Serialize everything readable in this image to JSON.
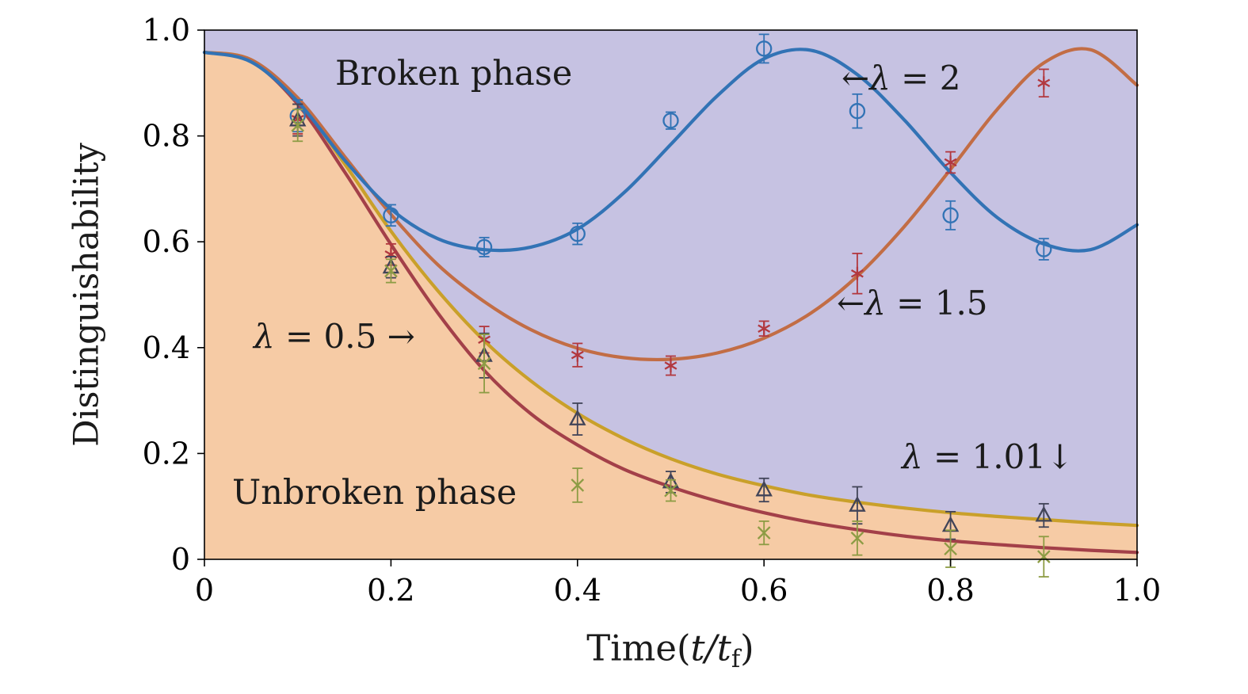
{
  "chart_data": {
    "type": "line",
    "title": "",
    "xlabel": {
      "prefix": "Time(",
      "var": "t/t",
      "sub": "f",
      "suffix": ")"
    },
    "ylabel": "Distinguishability",
    "xlim": [
      0,
      1.0
    ],
    "ylim": [
      0,
      1.0
    ],
    "grid": false,
    "x_ticks": [
      0,
      0.2,
      0.4,
      0.6,
      0.8,
      1.0
    ],
    "x_tick_labels": [
      "0",
      "0.2",
      "0.4",
      "0.6",
      "0.8",
      "1.0"
    ],
    "y_ticks": [
      0,
      0.2,
      0.4,
      0.6,
      0.8,
      1.0
    ],
    "y_tick_labels": [
      "0",
      "0.2",
      "0.4",
      "0.6",
      "0.8",
      "1.0"
    ],
    "regions": [
      {
        "label": "Broken phase",
        "color": "#c6c2e2"
      },
      {
        "label": "Unbroken phase",
        "color": "#f6cba5"
      }
    ],
    "curve_x": [
      0,
      0.05,
      0.1,
      0.15,
      0.2,
      0.25,
      0.3,
      0.35,
      0.4,
      0.45,
      0.5,
      0.55,
      0.6,
      0.65,
      0.7,
      0.75,
      0.8,
      0.85,
      0.9,
      0.95,
      1.0
    ],
    "series": [
      {
        "id": "lambda-2",
        "name": "λ = 2",
        "z": 4,
        "color": "#3273b5",
        "marker": "circle",
        "marker_color": "#3273b5",
        "curve_y": [
          0.958,
          0.94,
          0.865,
          0.755,
          0.662,
          0.606,
          0.585,
          0.59,
          0.624,
          0.693,
          0.784,
          0.876,
          0.946,
          0.962,
          0.916,
          0.831,
          0.731,
          0.646,
          0.596,
          0.585,
          0.632
        ],
        "points": {
          "x": [
            0.1,
            0.2,
            0.3,
            0.4,
            0.5,
            0.6,
            0.7,
            0.8,
            0.9
          ],
          "y": [
            0.838,
            0.65,
            0.59,
            0.615,
            0.829,
            0.965,
            0.847,
            0.65,
            0.586
          ],
          "err": [
            0.03,
            0.02,
            0.018,
            0.02,
            0.016,
            0.027,
            0.032,
            0.027,
            0.02
          ]
        }
      },
      {
        "id": "lambda-1-5",
        "name": "λ = 1.5",
        "z": 3,
        "color": "#c26d45",
        "marker": "asterisk",
        "marker_color": "#b2383f",
        "curve_y": [
          0.958,
          0.944,
          0.872,
          0.762,
          0.652,
          0.557,
          0.487,
          0.434,
          0.399,
          0.381,
          0.378,
          0.39,
          0.418,
          0.465,
          0.535,
          0.628,
          0.737,
          0.85,
          0.938,
          0.963,
          0.896
        ],
        "points": {
          "x": [
            0.1,
            0.2,
            0.3,
            0.4,
            0.5,
            0.6,
            0.7,
            0.8,
            0.9
          ],
          "y": [
            0.832,
            0.576,
            0.415,
            0.386,
            0.366,
            0.436,
            0.54,
            0.75,
            0.9
          ],
          "err": [
            0.028,
            0.02,
            0.025,
            0.022,
            0.018,
            0.014,
            0.038,
            0.02,
            0.026
          ]
        }
      },
      {
        "id": "lambda-1-01",
        "name": "λ = 1.01",
        "z": 2,
        "boundary": true,
        "color": "#c9a02a",
        "marker": "triangle",
        "marker_color": "#414458",
        "curve_y": [
          0.958,
          0.944,
          0.868,
          0.748,
          0.62,
          0.508,
          0.413,
          0.337,
          0.276,
          0.228,
          0.19,
          0.161,
          0.139,
          0.121,
          0.108,
          0.097,
          0.088,
          0.081,
          0.075,
          0.069,
          0.064
        ],
        "points": {
          "x": [
            0.1,
            0.2,
            0.3,
            0.4,
            0.5,
            0.6,
            0.7,
            0.8,
            0.9
          ],
          "y": [
            0.83,
            0.552,
            0.385,
            0.265,
            0.146,
            0.131,
            0.102,
            0.064,
            0.083
          ],
          "err": [
            0.03,
            0.02,
            0.042,
            0.03,
            0.02,
            0.022,
            0.035,
            0.026,
            0.022
          ]
        }
      },
      {
        "id": "lambda-0-5",
        "name": "λ = 0.5",
        "z": 1,
        "color": "#a34049",
        "marker": "x",
        "marker_color": "#8d9c44",
        "curve_y": [
          0.958,
          0.941,
          0.86,
          0.733,
          0.595,
          0.466,
          0.357,
          0.275,
          0.216,
          0.17,
          0.137,
          0.11,
          0.088,
          0.07,
          0.056,
          0.044,
          0.035,
          0.028,
          0.022,
          0.017,
          0.013
        ],
        "points": {
          "x": [
            0.1,
            0.2,
            0.3,
            0.4,
            0.5,
            0.6,
            0.7,
            0.8,
            0.9
          ],
          "y": [
            0.82,
            0.545,
            0.37,
            0.14,
            0.13,
            0.05,
            0.04,
            0.02,
            0.005
          ],
          "err": [
            0.03,
            0.022,
            0.055,
            0.032,
            0.02,
            0.022,
            0.032,
            0.035,
            0.038
          ]
        }
      }
    ],
    "annotations": [
      {
        "pre": "←",
        "lam": "λ",
        "rest": " = 2",
        "target": "lambda-2"
      },
      {
        "pre": "←",
        "lam": "λ",
        "rest": " = 1.5",
        "target": "lambda-1-5"
      },
      {
        "pre": "",
        "lam": "λ",
        "rest": " = 0.5 →",
        "target": "lambda-0-5"
      },
      {
        "pre": "",
        "lam": "λ",
        "rest": " = 1.01↓",
        "target": "lambda-1-01"
      }
    ]
  }
}
